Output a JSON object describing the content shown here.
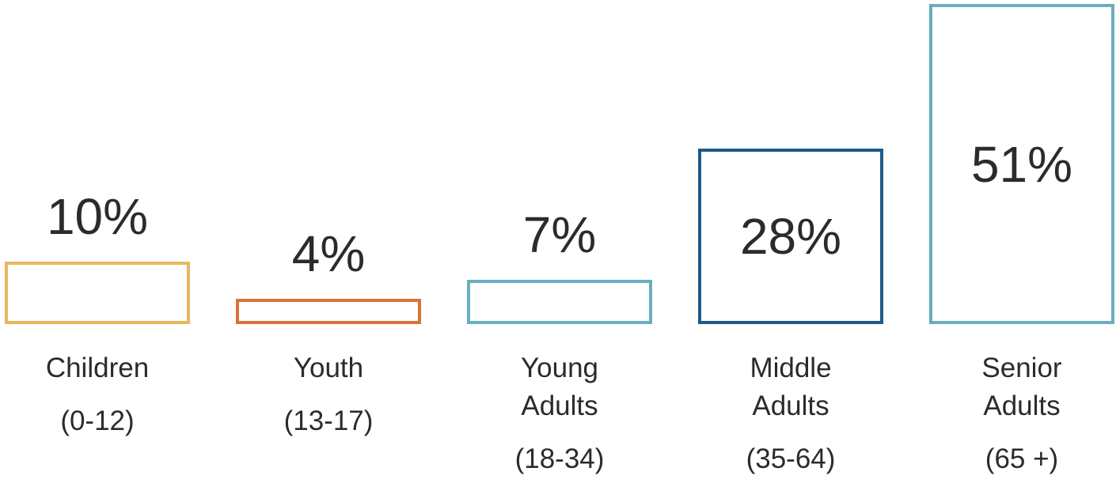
{
  "chart_data": {
    "type": "bar",
    "categories": [
      "Children",
      "Youth",
      "Young Adults",
      "Middle Adults",
      "Senior Adults"
    ],
    "age_ranges": [
      "(0-12)",
      "(13-17)",
      "(18-34)",
      "(35-64)",
      "(65 +)"
    ],
    "values": [
      10,
      4,
      7,
      28,
      51
    ],
    "value_labels": [
      "10%",
      "4%",
      "7%",
      "28%",
      "51%"
    ],
    "colors": [
      "#e8b85c",
      "#d9733a",
      "#6aaebf",
      "#1d5a8a",
      "#6aaebf"
    ]
  }
}
